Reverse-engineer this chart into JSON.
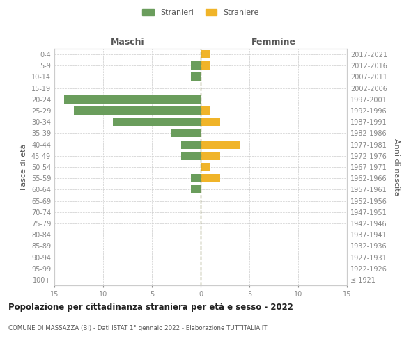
{
  "age_groups": [
    "100+",
    "95-99",
    "90-94",
    "85-89",
    "80-84",
    "75-79",
    "70-74",
    "65-69",
    "60-64",
    "55-59",
    "50-54",
    "45-49",
    "40-44",
    "35-39",
    "30-34",
    "25-29",
    "20-24",
    "15-19",
    "10-14",
    "5-9",
    "0-4"
  ],
  "birth_years": [
    "≤ 1921",
    "1922-1926",
    "1927-1931",
    "1932-1936",
    "1937-1941",
    "1942-1946",
    "1947-1951",
    "1952-1956",
    "1957-1961",
    "1962-1966",
    "1967-1971",
    "1972-1976",
    "1977-1981",
    "1982-1986",
    "1987-1991",
    "1992-1996",
    "1997-2001",
    "2002-2006",
    "2007-2011",
    "2012-2016",
    "2017-2021"
  ],
  "males": [
    0,
    0,
    0,
    0,
    0,
    0,
    0,
    0,
    1,
    1,
    0,
    2,
    2,
    3,
    9,
    13,
    14,
    0,
    1,
    1,
    0
  ],
  "females": [
    0,
    0,
    0,
    0,
    0,
    0,
    0,
    0,
    0,
    2,
    1,
    2,
    4,
    0,
    2,
    1,
    0,
    0,
    0,
    1,
    1
  ],
  "male_color": "#6a9d5c",
  "female_color": "#f0b429",
  "male_label": "Stranieri",
  "female_label": "Straniere",
  "title": "Popolazione per cittadinanza straniera per età e sesso - 2022",
  "subtitle": "COMUNE DI MASSAZZA (BI) - Dati ISTAT 1° gennaio 2022 - Elaborazione TUTTITALIA.IT",
  "xlabel_left": "Maschi",
  "xlabel_right": "Femmine",
  "ylabel_left": "Fasce di età",
  "ylabel_right": "Anni di nascita",
  "xlim": 15,
  "bg_color": "#ffffff",
  "grid_color": "#cccccc",
  "spine_color": "#cccccc",
  "tick_color": "#888888",
  "label_color": "#555555"
}
